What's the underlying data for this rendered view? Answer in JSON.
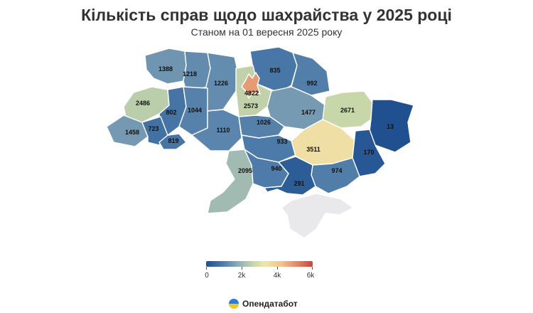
{
  "title": "Кількість справ щодо шахрайства у 2025 році",
  "subtitle": "Станом на 01 вересня 2025 року",
  "brand": "Опендатабот",
  "legend": {
    "ticks": [
      "0",
      "2k",
      "4k",
      "6k"
    ]
  },
  "colors": {
    "scale_low": "#1f4f8f",
    "scale_mid": "#efe7ad",
    "scale_high": "#c9433f",
    "crimea": "#e9e9ec"
  },
  "regions": [
    {
      "value": 1388
    },
    {
      "value": 1218
    },
    {
      "value": 1226
    },
    {
      "value": 835
    },
    {
      "value": 992
    },
    {
      "value": 4822
    },
    {
      "value": 2486
    },
    {
      "value": 802
    },
    {
      "value": 1044
    },
    {
      "value": 2573
    },
    {
      "value": 1477
    },
    {
      "value": 2671
    },
    {
      "value": 13
    },
    {
      "value": 1458
    },
    {
      "value": 723
    },
    {
      "value": 819
    },
    {
      "value": 1110
    },
    {
      "value": 1026
    },
    {
      "value": 933
    },
    {
      "value": 3511
    },
    {
      "value": 170
    },
    {
      "value": 2095
    },
    {
      "value": 940
    },
    {
      "value": 974
    },
    {
      "value": 291
    }
  ]
}
